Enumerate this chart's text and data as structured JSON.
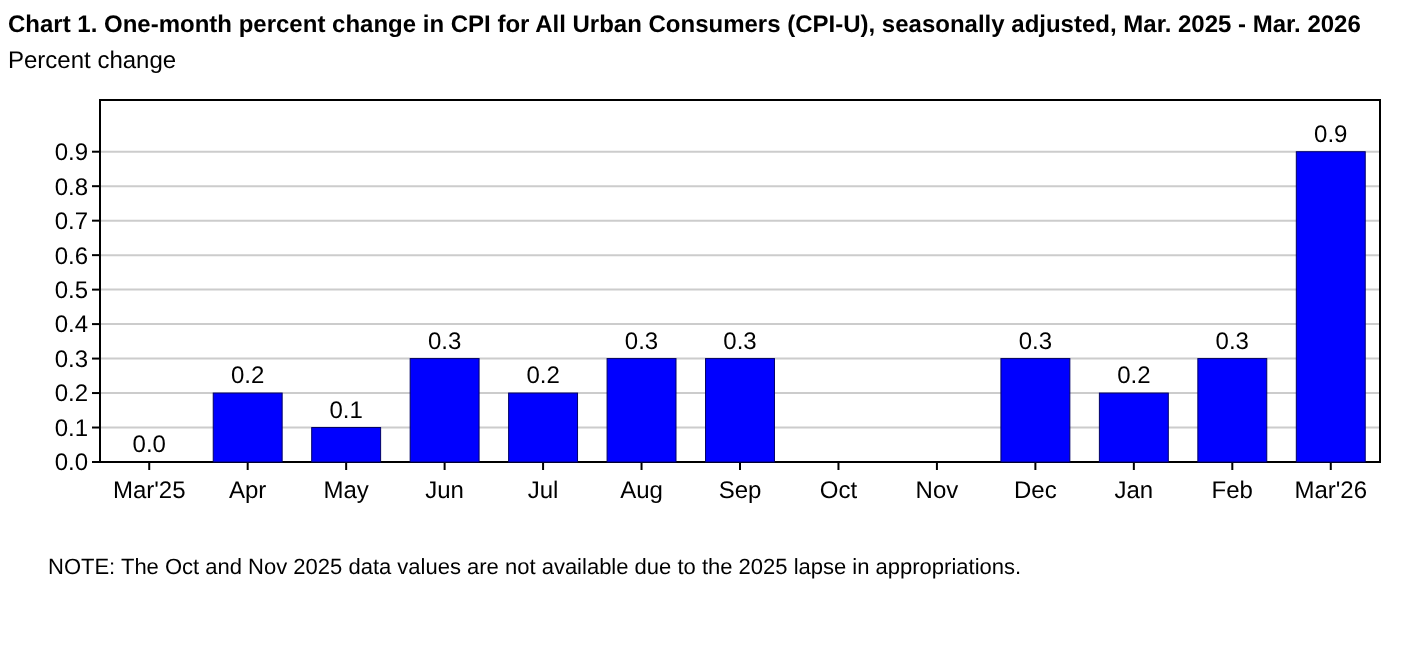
{
  "chart_data": {
    "type": "bar",
    "title": "Chart 1. One-month percent change in CPI for All Urban Consumers (CPI-U), seasonally adjusted, Mar. 2025 - Mar. 2026",
    "ylabel": "Percent change",
    "categories": [
      "Mar'25",
      "Apr",
      "May",
      "Jun",
      "Jul",
      "Aug",
      "Sep",
      "Oct",
      "Nov",
      "Dec",
      "Jan",
      "Feb",
      "Mar'26"
    ],
    "values": [
      0.0,
      0.2,
      0.1,
      0.3,
      0.2,
      0.3,
      0.3,
      null,
      null,
      0.3,
      0.2,
      0.3,
      0.9
    ],
    "value_labels": [
      "0.0",
      "0.2",
      "0.1",
      "0.3",
      "0.2",
      "0.3",
      "0.3",
      null,
      null,
      "0.3",
      "0.2",
      "0.3",
      "0.9"
    ],
    "color": "#0000ff",
    "ylim": [
      0,
      1.05
    ],
    "yticks": [
      {
        "value": 0,
        "label": "0.0"
      },
      {
        "value": 0.1,
        "label": "0.1"
      },
      {
        "value": 0.2,
        "label": "0.2"
      },
      {
        "value": 0.3,
        "label": "0.3"
      },
      {
        "value": 0.4,
        "label": "0.4"
      },
      {
        "value": 0.5,
        "label": "0.5"
      },
      {
        "value": 0.6,
        "label": "0.6"
      },
      {
        "value": 0.7,
        "label": "0.7"
      },
      {
        "value": 0.8,
        "label": "0.8"
      },
      {
        "value": 0.9,
        "label": "0.9"
      }
    ],
    "grid": "y",
    "annotations": [
      "NOTE: The Oct and Nov 2025 data values are not available due to the 2025 lapse in appropriations."
    ]
  }
}
